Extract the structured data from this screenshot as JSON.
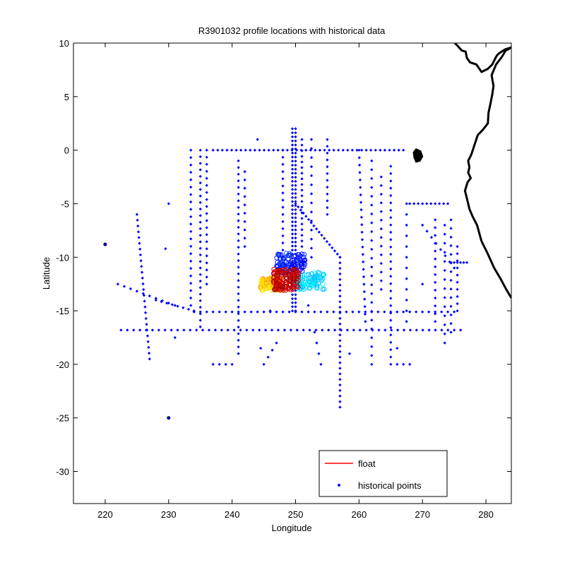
{
  "chart_data": {
    "type": "scatter",
    "title": "R3901032 profile locations with historical data",
    "xlabel": "Longitude",
    "ylabel": "Latitude",
    "xlim": [
      215,
      284
    ],
    "ylim": [
      -33,
      10
    ],
    "xticks": [
      220,
      230,
      240,
      250,
      260,
      270,
      280
    ],
    "yticks": [
      10,
      5,
      0,
      -5,
      -10,
      -15,
      -20,
      -25,
      -30
    ],
    "grid": false,
    "legend": {
      "placement": "bottom-right",
      "entries": [
        {
          "label": "float",
          "color": "#ff0000",
          "marker": "line"
        },
        {
          "label": "historical points",
          "color": "#0000ff",
          "marker": "dot"
        }
      ]
    },
    "series": [
      {
        "name": "historical points",
        "color": "#0000ff",
        "tracks": [
          {
            "from": [
              222.5,
              -16.8
            ],
            "to": [
              276,
              -16.8
            ],
            "n": 55
          },
          {
            "from": [
              234,
              -15.1
            ],
            "to": [
              275,
              -15.1
            ],
            "n": 42
          },
          {
            "from": [
              225,
              -6
            ],
            "to": [
              227,
              -19.5
            ],
            "n": 26
          },
          {
            "from": [
              228,
              -14
            ],
            "to": [
              234,
              -15
            ],
            "n": 8
          },
          {
            "from": [
              222,
              -12.5
            ],
            "to": [
              231,
              -14.5
            ],
            "n": 10
          },
          {
            "from": [
              235,
              0
            ],
            "to": [
              235,
              -16.5
            ],
            "n": 28
          },
          {
            "from": [
              236,
              0
            ],
            "to": [
              236,
              -12.5
            ],
            "n": 20
          },
          {
            "from": [
              233.5,
              0
            ],
            "to": [
              233.5,
              -14.5
            ],
            "n": 22
          },
          {
            "from": [
              237,
              0
            ],
            "to": [
              267,
              0
            ],
            "n": 42
          },
          {
            "from": [
              241,
              -1
            ],
            "to": [
              241,
              -19
            ],
            "n": 30
          },
          {
            "from": [
              242,
              -2
            ],
            "to": [
              242,
              -9
            ],
            "n": 10
          },
          {
            "from": [
              248,
              0
            ],
            "to": [
              248,
              -10
            ],
            "n": 16
          },
          {
            "from": [
              249.5,
              2
            ],
            "to": [
              249.5,
              -15
            ],
            "n": 46
          },
          {
            "from": [
              250,
              2
            ],
            "to": [
              250,
              -15
            ],
            "n": 46
          },
          {
            "from": [
              251,
              1
            ],
            "to": [
              251,
              -9
            ],
            "n": 20
          },
          {
            "from": [
              252.5,
              1
            ],
            "to": [
              252.5,
              -10
            ],
            "n": 14
          },
          {
            "from": [
              250,
              -5
            ],
            "to": [
              257,
              -10
            ],
            "n": 18
          },
          {
            "from": [
              257,
              -10
            ],
            "to": [
              257,
              -24
            ],
            "n": 28
          },
          {
            "from": [
              255,
              1
            ],
            "to": [
              255,
              -6
            ],
            "n": 12
          },
          {
            "from": [
              260,
              0
            ],
            "to": [
              261,
              -16
            ],
            "n": 24
          },
          {
            "from": [
              262,
              -1
            ],
            "to": [
              262,
              -20
            ],
            "n": 24
          },
          {
            "from": [
              265,
              -1.5
            ],
            "to": [
              265,
              -20
            ],
            "n": 28
          },
          {
            "from": [
              263.5,
              -2.5
            ],
            "to": [
              263.5,
              -13
            ],
            "n": 14
          },
          {
            "from": [
              267.5,
              -5
            ],
            "to": [
              267.5,
              -16
            ],
            "n": 12
          },
          {
            "from": [
              268,
              -5
            ],
            "to": [
              274,
              -5
            ],
            "n": 10
          },
          {
            "from": [
              270,
              -7
            ],
            "to": [
              275,
              -11
            ],
            "n": 8
          },
          {
            "from": [
              272,
              -6.5
            ],
            "to": [
              272,
              -16
            ],
            "n": 14
          },
          {
            "from": [
              273.5,
              -7
            ],
            "to": [
              273.5,
              -18
            ],
            "n": 14
          },
          {
            "from": [
              274.5,
              -6.5
            ],
            "to": [
              274.5,
              -17
            ],
            "n": 14
          },
          {
            "from": [
              275.5,
              -9
            ],
            "to": [
              275.5,
              -15
            ],
            "n": 10
          },
          {
            "from": [
              274.5,
              -10.5
            ],
            "to": [
              277,
              -10.5
            ],
            "n": 6
          },
          {
            "from": [
              245,
              -20
            ],
            "to": [
              247,
              -18
            ],
            "n": 4
          },
          {
            "from": [
              253,
              -17
            ],
            "to": [
              254,
              -20
            ],
            "n": 4
          },
          {
            "from": [
              237,
              -20
            ],
            "to": [
              240,
              -20
            ],
            "n": 4
          },
          {
            "from": [
              266,
              -20
            ],
            "to": [
              268,
              -20
            ],
            "n": 3
          }
        ],
        "points": [
          [
            220.0,
            -8.8
          ],
          [
            230.0,
            -25.0
          ],
          [
            230.0,
            -5.0
          ],
          [
            229.5,
            -9.2
          ],
          [
            270.0,
            -12.5
          ],
          [
            244.0,
            1.0
          ],
          [
            231.0,
            -17.5
          ],
          [
            244.5,
            -18.5
          ],
          [
            266.0,
            -18.5
          ],
          [
            258.5,
            -19.0
          ],
          [
            252.0,
            -14.5
          ],
          [
            246.0,
            -15.0
          ]
        ]
      },
      {
        "name": "float",
        "color": "#ff0000",
        "cluster": {
          "lon": [
            244.5,
            254.5
          ],
          "lat": [
            -13.1,
            -9.6
          ],
          "colormap": "jet"
        }
      }
    ],
    "coastline": {
      "color": "#000000",
      "main": [
        [
          284.0,
          -13.8
        ],
        [
          283.2,
          -13.0
        ],
        [
          282.3,
          -12.0
        ],
        [
          281.3,
          -11.0
        ],
        [
          280.3,
          -9.7
        ],
        [
          279.3,
          -8.5
        ],
        [
          278.6,
          -7.0
        ],
        [
          277.9,
          -6.2
        ],
        [
          277.4,
          -5.5
        ],
        [
          277.0,
          -4.5
        ],
        [
          276.7,
          -3.8
        ],
        [
          277.1,
          -3.0
        ],
        [
          277.6,
          -2.6
        ],
        [
          277.2,
          -2.1
        ],
        [
          277.4,
          -1.6
        ],
        [
          277.2,
          -1.0
        ],
        [
          277.7,
          -0.4
        ],
        [
          278.2,
          0.5
        ],
        [
          278.7,
          1.4
        ],
        [
          279.5,
          1.9
        ],
        [
          280.3,
          2.5
        ],
        [
          280.4,
          3.5
        ],
        [
          280.7,
          4.3
        ],
        [
          281.0,
          5.2
        ],
        [
          281.2,
          6.0
        ],
        [
          280.9,
          7.0
        ],
        [
          281.6,
          8.0
        ],
        [
          282.5,
          8.7
        ],
        [
          283.1,
          9.3
        ],
        [
          283.8,
          9.5
        ]
      ],
      "gulf": [
        [
          284.0,
          9.6
        ],
        [
          283.0,
          9.4
        ],
        [
          282.2,
          9.1
        ],
        [
          281.8,
          8.9
        ],
        [
          281.5,
          8.6
        ],
        [
          281.0,
          8.0
        ],
        [
          280.3,
          7.6
        ],
        [
          279.3,
          7.3
        ],
        [
          278.5,
          8.0
        ],
        [
          277.5,
          8.2
        ],
        [
          277.0,
          8.6
        ],
        [
          276.8,
          9.2
        ],
        [
          276.2,
          9.3
        ],
        [
          275.6,
          9.7
        ],
        [
          275.1,
          10.0
        ]
      ],
      "islands": [
        [
          [
            268.6,
            -0.2
          ],
          [
            269.0,
            0.1
          ],
          [
            269.7,
            -0.1
          ],
          [
            270.0,
            -0.6
          ],
          [
            269.6,
            -1.0
          ],
          [
            269.0,
            -1.1
          ],
          [
            268.7,
            -0.7
          ],
          [
            268.6,
            -0.2
          ]
        ]
      ],
      "marks": [
        [
          220.0,
          -8.8
        ],
        [
          230.0,
          -25.0
        ]
      ]
    }
  }
}
